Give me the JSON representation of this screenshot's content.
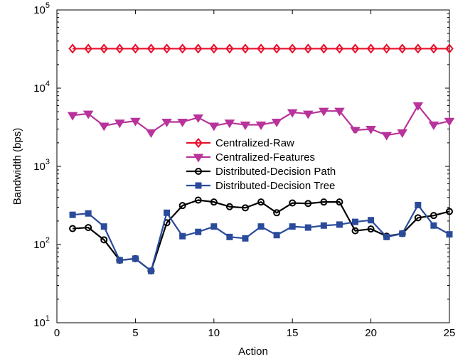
{
  "chart_data": {
    "type": "line",
    "xlabel": "Action",
    "ylabel": "Bandwidth (bps)",
    "xlim": [
      0,
      25
    ],
    "ylim": [
      10,
      100000
    ],
    "yscale": "log",
    "xticks": [
      0,
      5,
      10,
      15,
      20,
      25
    ],
    "yticks": [
      {
        "base": "10",
        "exp": "1",
        "value": 10
      },
      {
        "base": "10",
        "exp": "2",
        "value": 100
      },
      {
        "base": "10",
        "exp": "3",
        "value": 1000
      },
      {
        "base": "10",
        "exp": "4",
        "value": 10000
      },
      {
        "base": "10",
        "exp": "5",
        "value": 100000
      }
    ],
    "grid": false,
    "legend_position": "center",
    "x": [
      1,
      2,
      3,
      4,
      5,
      6,
      7,
      8,
      9,
      10,
      11,
      12,
      13,
      14,
      15,
      16,
      17,
      18,
      19,
      20,
      21,
      22,
      23,
      24,
      25
    ],
    "series": [
      {
        "name": "Centralized-Raw",
        "color": "#e8112d",
        "marker": "diamond",
        "values": [
          32000,
          32000,
          32000,
          32000,
          32000,
          32000,
          32000,
          32000,
          32000,
          32000,
          32000,
          32000,
          32000,
          32000,
          32000,
          32000,
          32000,
          32000,
          32000,
          32000,
          32000,
          32000,
          32000,
          32000,
          32000
        ]
      },
      {
        "name": "Centralized-Features",
        "color": "#b8339b",
        "marker": "triangle-down",
        "values": [
          4500,
          4700,
          3300,
          3600,
          3800,
          2700,
          3700,
          3700,
          4200,
          3300,
          3600,
          3400,
          3400,
          3700,
          4900,
          4700,
          5100,
          5100,
          2900,
          3000,
          2500,
          2700,
          6000,
          3400,
          3800
        ]
      },
      {
        "name": "Distributed-Decision Path",
        "color": "#000000",
        "marker": "circle",
        "values": [
          160,
          165,
          115,
          63,
          66,
          46,
          190,
          315,
          370,
          350,
          305,
          295,
          350,
          255,
          340,
          335,
          350,
          350,
          150,
          158,
          128,
          138,
          220,
          235,
          265
        ]
      },
      {
        "name": "Distributed-Decision Tree",
        "color": "#2a4b9b",
        "marker": "square",
        "values": [
          240,
          250,
          170,
          63,
          66,
          46,
          255,
          128,
          145,
          170,
          125,
          120,
          170,
          132,
          170,
          165,
          175,
          180,
          195,
          205,
          125,
          138,
          320,
          175,
          135
        ]
      }
    ]
  }
}
